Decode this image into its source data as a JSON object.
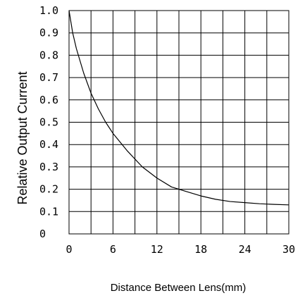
{
  "chart_data": {
    "type": "line",
    "title": "",
    "xlabel": "Distance Between Lens(mm)",
    "ylabel": "Relative Output Current",
    "xlim": [
      0,
      30
    ],
    "ylim": [
      0,
      1.0
    ],
    "grid": true,
    "x_ticks": [
      0,
      3,
      6,
      9,
      12,
      15,
      18,
      21,
      24,
      27,
      30
    ],
    "y_ticks": [
      0,
      0.1,
      0.2,
      0.3,
      0.4,
      0.5,
      0.6,
      0.7,
      0.8,
      0.9,
      1.0
    ],
    "x_tick_labels": [
      "0",
      "6",
      "12",
      "18",
      "24",
      "30"
    ],
    "y_tick_labels": [
      "0",
      "0.1",
      "0.2",
      "0.3",
      "0.4",
      "0.5",
      "0.6",
      "0.7",
      "0.8",
      "0.9",
      "1.0"
    ],
    "series": [
      {
        "color": "#000000",
        "x": [
          0,
          0.5,
          1,
          2,
          3,
          4,
          5,
          6,
          8,
          10,
          12,
          14,
          15,
          16,
          18,
          20,
          22,
          24,
          26,
          28,
          30
        ],
        "y": [
          1.0,
          0.9,
          0.83,
          0.72,
          0.63,
          0.56,
          0.5,
          0.45,
          0.37,
          0.3,
          0.25,
          0.21,
          0.2,
          0.19,
          0.17,
          0.155,
          0.145,
          0.14,
          0.135,
          0.132,
          0.13
        ]
      }
    ]
  }
}
